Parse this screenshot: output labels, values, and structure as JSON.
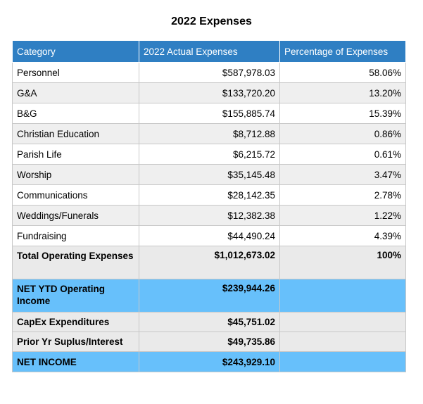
{
  "title": "2022 Expenses",
  "header": {
    "category": "Category",
    "actual": "2022 Actual Expenses",
    "percentage": "Percentage of Expenses"
  },
  "rows": [
    {
      "category": "Personnel",
      "actual": "$587,978.03",
      "percentage": "58.06%"
    },
    {
      "category": "G&A",
      "actual": "$133,720.20",
      "percentage": "13.20%"
    },
    {
      "category": "B&G",
      "actual": "$155,885.74",
      "percentage": "15.39%"
    },
    {
      "category": "Christian Education",
      "actual": "$8,712.88",
      "percentage": "0.86%"
    },
    {
      "category": "Parish Life",
      "actual": "$6,215.72",
      "percentage": "0.61%"
    },
    {
      "category": "Worship",
      "actual": "$35,145.48",
      "percentage": "3.47%"
    },
    {
      "category": "Communications",
      "actual": "$28,142.35",
      "percentage": "2.78%"
    },
    {
      "category": "Weddings/Funerals",
      "actual": "$12,382.38",
      "percentage": "1.22%"
    },
    {
      "category": "Fundraising",
      "actual": "$44,490.24",
      "percentage": "4.39%"
    }
  ],
  "total": {
    "category": "Total Operating Expenses",
    "actual": "$1,012,673.02",
    "percentage": "100%"
  },
  "net_operating": {
    "category": "NET YTD Operating Income",
    "actual": "$239,944.26"
  },
  "capex": {
    "category": "CapEx Expenditures",
    "actual": "$45,751.02"
  },
  "prior_year": {
    "category": "Prior Yr Suplus/Interest",
    "actual": "$49,735.86"
  },
  "net_income": {
    "category": "NET INCOME",
    "actual": "$243,929.10"
  },
  "colors": {
    "header": "#2f7fc3",
    "net_rows": "#67c0fb",
    "alt_row": "#efefef"
  }
}
